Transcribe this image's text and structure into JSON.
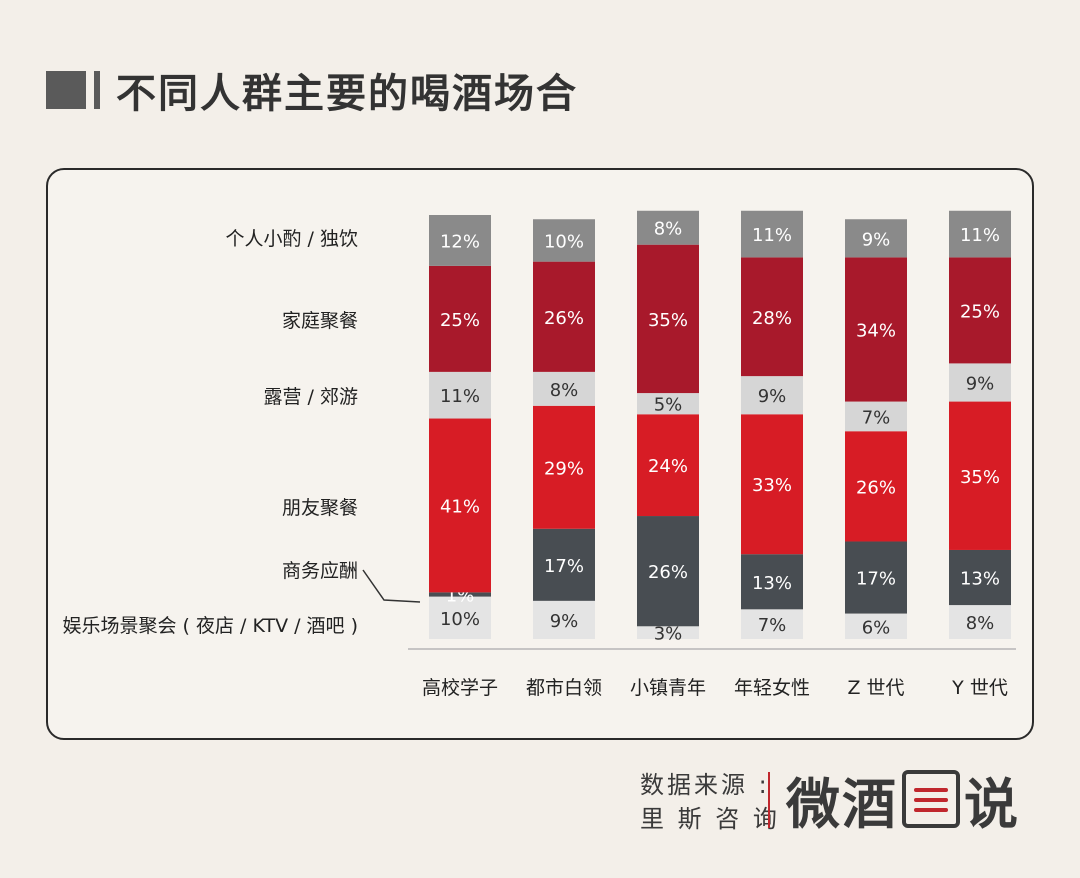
{
  "title": "不同人群主要的喝酒场合",
  "chart_data": {
    "type": "bar",
    "stacked": true,
    "orientation": "vertical",
    "ylim": [
      0,
      100
    ],
    "categories": [
      "高校学子",
      "都市白领",
      "小镇青年",
      "年轻女性",
      "Z 世代",
      "Y 世代"
    ],
    "series": [
      {
        "name": "娱乐场景聚会 ( 夜店 / KTV / 酒吧 )",
        "color": "#e4e4e4",
        "values": [
          10,
          9,
          3,
          7,
          6,
          8
        ]
      },
      {
        "name": "商务应酬",
        "color": "#484d52",
        "values": [
          1,
          17,
          26,
          13,
          17,
          13
        ]
      },
      {
        "name": "朋友聚餐",
        "color": "#d71c25",
        "values": [
          41,
          29,
          24,
          33,
          26,
          35
        ]
      },
      {
        "name": "露营 / 郊游",
        "color": "#d6d6d6",
        "values": [
          11,
          8,
          5,
          9,
          7,
          9
        ]
      },
      {
        "name": "家庭聚餐",
        "color": "#a8192b",
        "values": [
          25,
          26,
          35,
          28,
          34,
          25
        ]
      },
      {
        "name": "个人小酌 / 独饮",
        "color": "#8a8a8a",
        "values": [
          12,
          10,
          8,
          11,
          9,
          11
        ]
      }
    ],
    "value_suffix": "%",
    "legend": "left"
  },
  "source": {
    "line1": "数据来源 :",
    "line2": "里 斯 咨 询"
  },
  "brand": {
    "char1": "微",
    "char2": "酒",
    "char4": "说"
  }
}
